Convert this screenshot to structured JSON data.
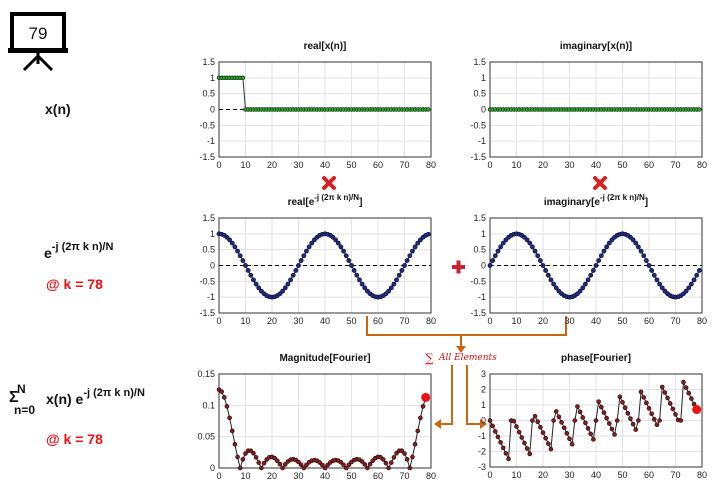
{
  "frame_number": "79",
  "labels": {
    "xn": "x(n)",
    "exp_base": "e",
    "exp_sup": "-j (2π k n)/N",
    "k_label": "@ k = 78",
    "sum_sigma": "Σ",
    "sum_upper": "N",
    "sum_lower": "n=0",
    "sum_body": "x(n) e",
    "sum_sup": "-j (2π k n)/N",
    "k_label2": "@ k = 78",
    "all_elements": "All Elements"
  },
  "colors": {
    "green": "#22aa22",
    "navy": "#1a2b8c",
    "maroon": "#8b1a1a",
    "red": "#ee1111",
    "orange": "#cc6611"
  },
  "chart_data": [
    {
      "id": "real_x",
      "type": "scatter",
      "title": "real[x(n)]",
      "xlim": [
        0,
        80
      ],
      "ylim": [
        -1.5,
        1.5
      ],
      "xticks": [
        0,
        10,
        20,
        30,
        40,
        50,
        60,
        70,
        80
      ],
      "yticks": [
        -1.5,
        -1,
        -0.5,
        0,
        0.5,
        1,
        1.5
      ],
      "grid": true,
      "series": [
        {
          "signal": "x(n) = 1 for n < 10, 0 otherwise",
          "n_values": [
            0,
            79
          ],
          "values_nonzero": {
            "start": 0,
            "end": 9,
            "value": 1
          },
          "value_else": 0
        }
      ]
    },
    {
      "id": "imag_x",
      "type": "scatter",
      "title": "imaginary[x(n)]",
      "xlim": [
        0,
        80
      ],
      "ylim": [
        -1.5,
        1.5
      ],
      "xticks": [
        0,
        10,
        20,
        30,
        40,
        50,
        60,
        70,
        80
      ],
      "yticks": [
        -1.5,
        -1,
        -0.5,
        0,
        0.5,
        1,
        1.5
      ],
      "grid": true,
      "series": [
        {
          "signal": "0 for all n",
          "n_values": [
            0,
            79
          ],
          "value": 0
        }
      ]
    },
    {
      "id": "real_exp",
      "type": "scatter",
      "title_base": "real[e",
      "title_sup": "-j (2π k n)/N",
      "title_end": "]",
      "xlim": [
        0,
        80
      ],
      "ylim": [
        -1.5,
        1.5
      ],
      "xticks": [
        0,
        10,
        20,
        30,
        40,
        50,
        60,
        70,
        80
      ],
      "yticks": [
        -1.5,
        -1,
        -0.5,
        0,
        0.5,
        1,
        1.5
      ],
      "grid": true,
      "series": [
        {
          "signal": "cos(2π k n / N)",
          "k": 78,
          "N": 80,
          "n_values": [
            0,
            79
          ]
        }
      ]
    },
    {
      "id": "imag_exp",
      "type": "scatter",
      "title_base": "imaginary[e",
      "title_sup": "-j (2π k n)/N",
      "title_end": "]",
      "xlim": [
        0,
        80
      ],
      "ylim": [
        -1.5,
        1.5
      ],
      "xticks": [
        0,
        10,
        20,
        30,
        40,
        50,
        60,
        70,
        80
      ],
      "yticks": [
        -1.5,
        -1,
        -0.5,
        0,
        0.5,
        1,
        1.5
      ],
      "grid": true,
      "series": [
        {
          "signal": "-sin(2π k n / N)",
          "k": 78,
          "N": 80,
          "n_values": [
            0,
            79
          ]
        }
      ]
    },
    {
      "id": "magnitude",
      "type": "line",
      "title": "Magnitude[Fourier]",
      "xlim": [
        0,
        80
      ],
      "ylim": [
        0,
        0.15
      ],
      "xticks": [
        0,
        10,
        20,
        30,
        40,
        50,
        60,
        70,
        80
      ],
      "yticks": [
        0,
        0.05,
        0.1,
        0.15
      ],
      "grid": true,
      "series": [
        {
          "signal": "|X(k)| / N of x(n)",
          "k_values": [
            0,
            78
          ],
          "highlight_k": 78
        }
      ]
    },
    {
      "id": "phase",
      "type": "line",
      "title": "phase[Fourier]",
      "xlim": [
        0,
        80
      ],
      "ylim": [
        -3,
        3
      ],
      "xticks": [
        0,
        10,
        20,
        30,
        40,
        50,
        60,
        70,
        80
      ],
      "yticks": [
        -3,
        -2,
        -1,
        0,
        1,
        2,
        3
      ],
      "grid": true,
      "series": [
        {
          "signal": "arg X(k) of x(n)",
          "k_values": [
            0,
            78
          ],
          "highlight_k": 78
        }
      ]
    }
  ]
}
